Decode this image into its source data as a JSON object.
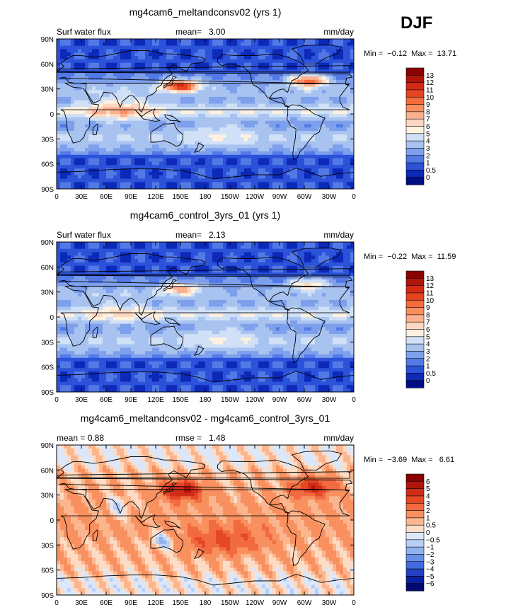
{
  "season": "DJF",
  "lat_ticks": [
    "90N",
    "60N",
    "30N",
    "0",
    "30S",
    "60S",
    "90S"
  ],
  "lon_ticks": [
    "0",
    "30E",
    "60E",
    "90E",
    "120E",
    "150E",
    "180",
    "150W",
    "120W",
    "90W",
    "60W",
    "30W",
    "0"
  ],
  "panels": [
    {
      "title": "mg4cam6_meltandconsv02 (yrs 1)",
      "left_label": "Surf water flux",
      "mid_label": "mean=   3.00",
      "right_label": "mm/day",
      "minmax": "Min =  −0.12  Max =  13.71",
      "levels": [
        "13",
        "12",
        "11",
        "10",
        "9",
        "8",
        "7",
        "6",
        "5",
        "4",
        "3",
        "2",
        "1",
        "0.5",
        "0"
      ],
      "colors": [
        "#8b0000",
        "#b2130b",
        "#d42a14",
        "#e8431f",
        "#f46b3e",
        "#f98e61",
        "#fbb18f",
        "#fdd7c2",
        "#fff1e0",
        "#cfe0f7",
        "#a8c3f0",
        "#7ea0ec",
        "#5279e6",
        "#2b52d9",
        "#0d29b8",
        "#000e85"
      ],
      "field": "absolute"
    },
    {
      "title": "mg4cam6_control_3yrs_01 (yrs 1)",
      "left_label": "Surf water flux",
      "mid_label": "mean=   2.13",
      "right_label": "mm/day",
      "minmax": "Min =  −0.22  Max =  11.59",
      "levels": [
        "13",
        "12",
        "11",
        "10",
        "9",
        "8",
        "7",
        "6",
        "5",
        "4",
        "3",
        "2",
        "1",
        "0.5",
        "0"
      ],
      "colors": [
        "#8b0000",
        "#b2130b",
        "#d42a14",
        "#e8431f",
        "#f46b3e",
        "#f98e61",
        "#fbb18f",
        "#fdd7c2",
        "#fff1e0",
        "#cfe0f7",
        "#a8c3f0",
        "#7ea0ec",
        "#5279e6",
        "#2b52d9",
        "#0d29b8",
        "#000e85"
      ],
      "field": "absolute_control"
    },
    {
      "title": "mg4cam6_meltandconsv02 - mg4cam6_control_3yrs_01",
      "left_label": "mean =   0.88",
      "mid_label": "rmse =   1.48",
      "right_label": "mm/day",
      "minmax": "Min =  −3.69  Max =   6.61",
      "levels": [
        "6",
        "5",
        "4",
        "3",
        "2",
        "1",
        "0.5",
        "0",
        "−0.5",
        "−1",
        "−2",
        "−3",
        "−4",
        "−5",
        "−6"
      ],
      "colors": [
        "#8b0000",
        "#b0150c",
        "#d02d18",
        "#e64825",
        "#f26a3f",
        "#f8905f",
        "#fbb68f",
        "#fddcc6",
        "#dbe7fa",
        "#b8cff5",
        "#91b1ef",
        "#6a8fe8",
        "#4369de",
        "#2141c4",
        "#0c1fa0",
        "#000a70"
      ],
      "field": "difference"
    }
  ],
  "chart_data": [
    {
      "type": "heatmap",
      "title": "mg4cam6_meltandconsv02 (yrs 1)",
      "variable": "Surf water flux",
      "units": "mm/day",
      "season": "DJF",
      "mean": 3.0,
      "min": -0.12,
      "max": 13.71,
      "contour_levels": [
        0,
        0.5,
        1,
        2,
        3,
        4,
        5,
        6,
        7,
        8,
        9,
        10,
        11,
        12,
        13
      ],
      "x_range": [
        0,
        360
      ],
      "y_range": [
        -90,
        90
      ]
    },
    {
      "type": "heatmap",
      "title": "mg4cam6_control_3yrs_01 (yrs 1)",
      "variable": "Surf water flux",
      "units": "mm/day",
      "season": "DJF",
      "mean": 2.13,
      "min": -0.22,
      "max": 11.59,
      "contour_levels": [
        0,
        0.5,
        1,
        2,
        3,
        4,
        5,
        6,
        7,
        8,
        9,
        10,
        11,
        12,
        13
      ],
      "x_range": [
        0,
        360
      ],
      "y_range": [
        -90,
        90
      ]
    },
    {
      "type": "heatmap",
      "title": "mg4cam6_meltandconsv02 - mg4cam6_control_3yrs_01",
      "units": "mm/day",
      "season": "DJF",
      "mean": 0.88,
      "rmse": 1.48,
      "min": -3.69,
      "max": 6.61,
      "contour_levels": [
        -6,
        -5,
        -4,
        -3,
        -2,
        -1,
        -0.5,
        0,
        0.5,
        1,
        2,
        3,
        4,
        5,
        6
      ],
      "x_range": [
        0,
        360
      ],
      "y_range": [
        -90,
        90
      ]
    }
  ]
}
